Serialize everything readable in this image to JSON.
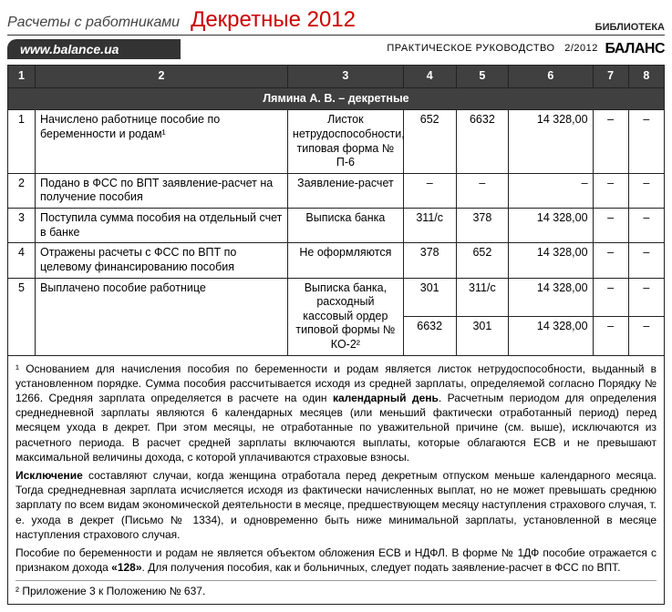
{
  "header": {
    "left": "Расчеты с работниками",
    "title": "Декретные 2012",
    "library": "БИБЛИОТЕКА"
  },
  "subheader": {
    "url": "www.balance.ua",
    "guide": "ПРАКТИЧЕСКОЕ РУКОВОДСТВО",
    "issue": "2/2012",
    "brand": "БАЛАНС"
  },
  "columns": [
    "1",
    "2",
    "3",
    "4",
    "5",
    "6",
    "7",
    "8"
  ],
  "section_title": "Лямина А. В. – декретные",
  "rows": [
    {
      "n": "1",
      "op": "Начислено работнице пособие по беременности и родам¹",
      "doc": "Листок нетрудоспособности, типовая форма № П-6",
      "c4": "652",
      "c5": "6632",
      "c6": "14 328,00",
      "c7": "–",
      "c8": "–"
    },
    {
      "n": "2",
      "op": "Подано в ФСС по ВПТ заявление-расчет на получение пособия",
      "doc": "Заявление-расчет",
      "c4": "–",
      "c5": "–",
      "c6": "–",
      "c7": "–",
      "c8": "–"
    },
    {
      "n": "3",
      "op": "Поступила сумма пособия на отдельный счет в банке",
      "doc": "Выписка банка",
      "c4": "311/с",
      "c5": "378",
      "c6": "14 328,00",
      "c7": "–",
      "c8": "–"
    },
    {
      "n": "4",
      "op": "Отражены расчеты с ФСС по ВПТ по целевому финансированию пособия",
      "doc": "Не оформляются",
      "c4": "378",
      "c5": "652",
      "c6": "14 328,00",
      "c7": "–",
      "c8": "–"
    },
    {
      "n": "5",
      "op": "Выплачено пособие работнице",
      "doc": "Выписка банка, расходный кассовый ордер типовой формы № КО-2²",
      "c4": "301",
      "c5": "311/с",
      "c6": "14 328,00",
      "c7": "–",
      "c8": "–",
      "extra": {
        "c4": "6632",
        "c5": "301",
        "c6": "14 328,00",
        "c7": "–",
        "c8": "–"
      }
    }
  ],
  "footnotes": {
    "p1a": "¹ Основанием для начисления пособия по беременности и родам является листок нетрудоспособности, выданный в установленном порядке. Сумма пособия рассчитывается исходя из средней зарплаты, определяемой согласно Порядку № 1266. Средняя зарплата определяется в расчете на один ",
    "p1b_bold": "календарный день",
    "p1c": ". Расчетным периодом для определения среднедневной зарплаты являются 6 календарных месяцев (или меньший фактически отработанный период) перед месяцем ухода в декрет. При этом месяцы, не отработанные по уважительной причине (см. выше), исключаются из расчетного периода. В расчет средней зарплаты включаются выплаты, которые облагаются ЕСВ и не превышают максимальной величины дохода, с которой уплачиваются страховые взносы.",
    "p2a_bold": "Исключение",
    "p2b": " составляют случаи, когда женщина отработала перед декретным отпуском меньше календарного месяца. Тогда среднедневная зарплата исчисляется исходя из фактически начисленных выплат, но не может превышать среднюю зарплату по всем видам экономической деятельности в месяце, предшествующем месяцу наступления страхового случая, т. е. ухода в декрет (Письмо № 1334), и одновременно быть ниже минимальной зарплаты, установленной в месяце наступления страхового случая.",
    "p3a": "Пособие по беременности и родам не является объектом обложения ЕСВ и НДФЛ. В форме № 1ДФ пособие отражается с признаком дохода ",
    "p3b_bold": "«128»",
    "p3c": ". Для получения пособия, как и больничных, следует подать заявление-расчет в ФСС по ВПТ.",
    "p4": "² Приложение 3 к Положению № 637."
  }
}
